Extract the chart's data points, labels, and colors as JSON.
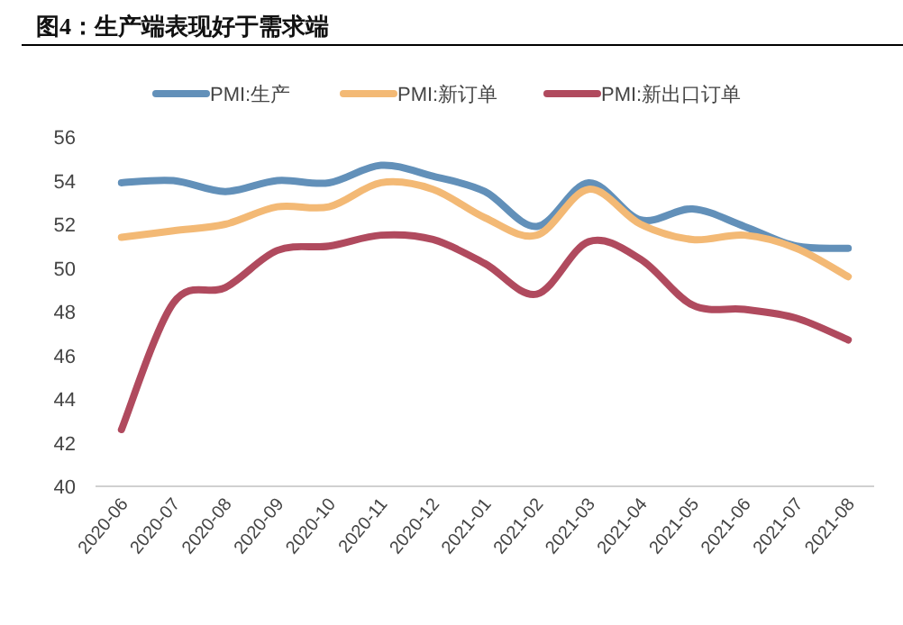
{
  "chart_data": {
    "type": "line",
    "title": "图4：生产端表现好于需求端",
    "categories": [
      "2020-06",
      "2020-07",
      "2020-08",
      "2020-09",
      "2020-10",
      "2020-11",
      "2020-12",
      "2021-01",
      "2021-02",
      "2021-03",
      "2021-04",
      "2021-05",
      "2021-06",
      "2021-07",
      "2021-08"
    ],
    "series": [
      {
        "name": "PMI:生产",
        "color": "#6290b9",
        "values": [
          53.9,
          54.0,
          53.5,
          54.0,
          53.9,
          54.7,
          54.2,
          53.5,
          51.9,
          53.9,
          52.2,
          52.7,
          51.9,
          51.0,
          50.9
        ]
      },
      {
        "name": "PMI:新订单",
        "color": "#f3b975",
        "values": [
          51.4,
          51.7,
          52.0,
          52.8,
          52.8,
          53.9,
          53.6,
          52.3,
          51.5,
          53.6,
          52.0,
          51.3,
          51.5,
          50.9,
          49.6
        ]
      },
      {
        "name": "PMI:新出口订单",
        "color": "#b04a5e",
        "values": [
          42.6,
          48.4,
          49.1,
          50.8,
          51.0,
          51.5,
          51.3,
          50.2,
          48.8,
          51.2,
          50.4,
          48.3,
          48.1,
          47.7,
          46.7
        ]
      }
    ],
    "ylim": [
      40,
      56
    ],
    "yticks": [
      40,
      42,
      44,
      46,
      48,
      50,
      52,
      54,
      56
    ],
    "grid": false,
    "legend": "top",
    "marker": "none",
    "line_style": "solid"
  }
}
